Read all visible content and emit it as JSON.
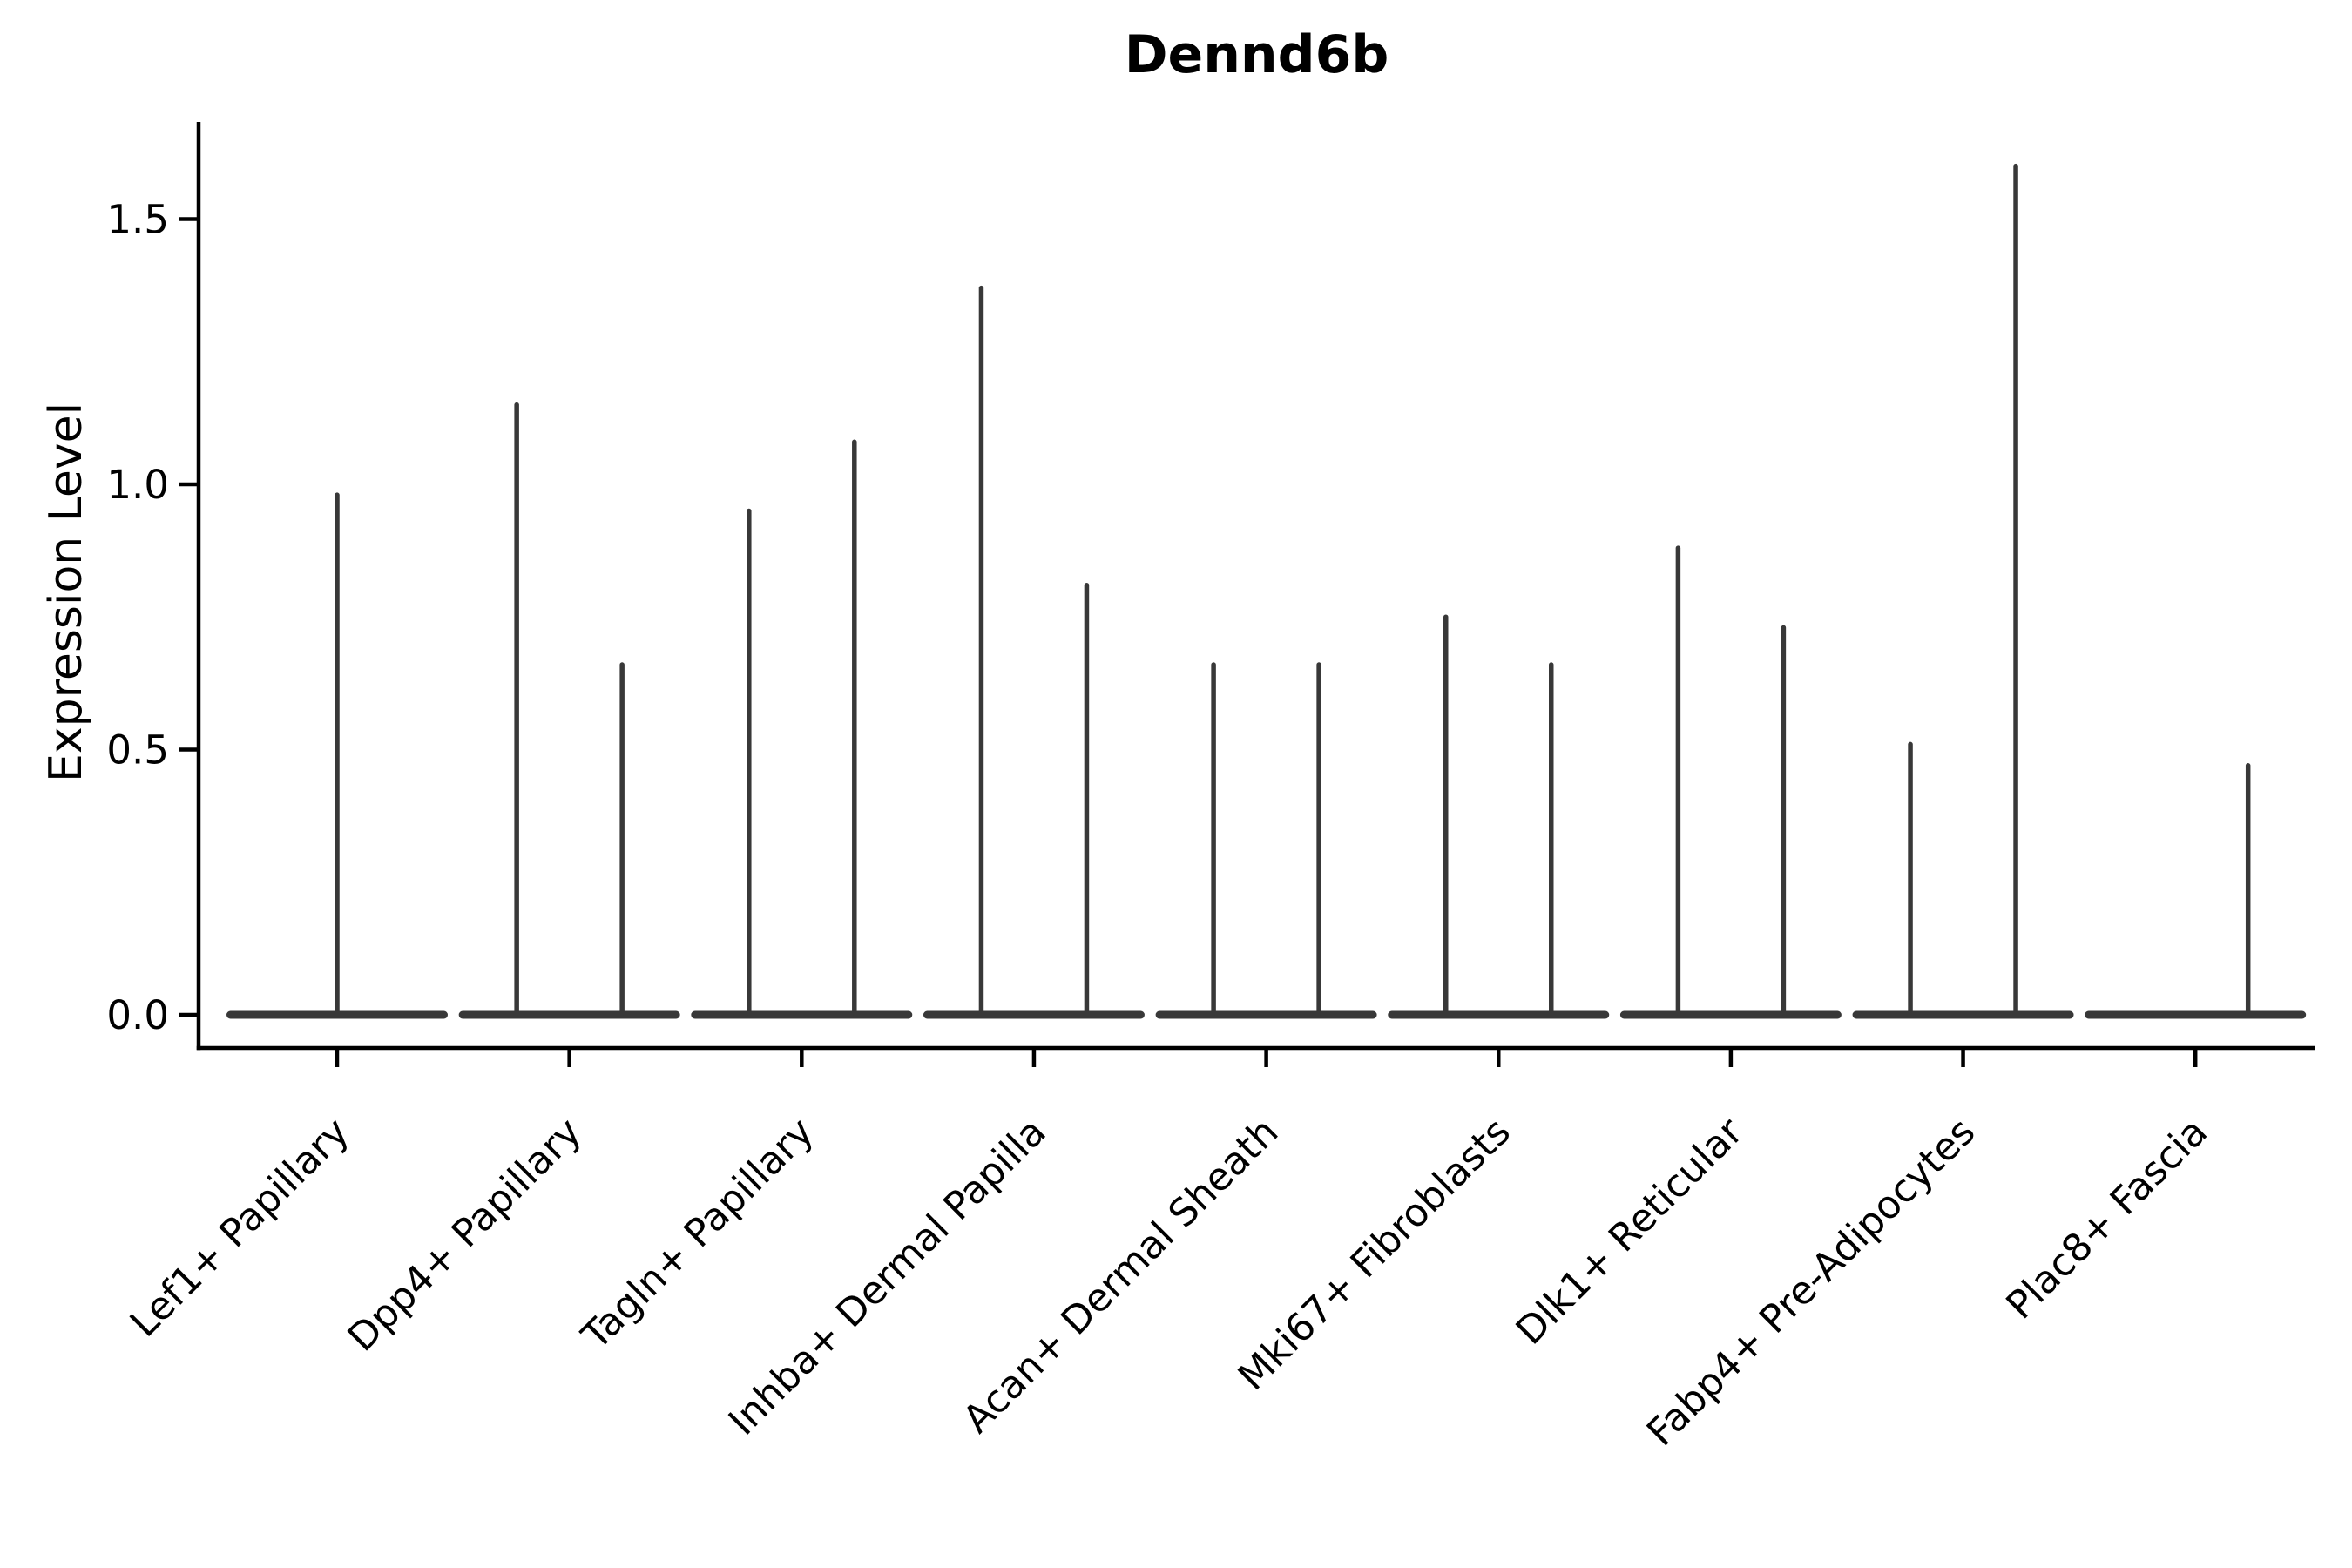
{
  "chart_data": {
    "type": "violin",
    "title": "Dennd6b",
    "ylabel": "Expression Level",
    "xlabel": "",
    "ytick_labels": [
      "0.0",
      "0.5",
      "1.0",
      "1.5"
    ],
    "ylim": [
      -0.06,
      1.68
    ],
    "grid": false,
    "legend": false,
    "x_tick_rotation": 45,
    "baseline_value": 0.0,
    "violin_color": "#383838",
    "axis_color": "#000000",
    "background_color": "#ffffff",
    "categories": [
      {
        "label": "Lef1+ Papillary",
        "spikes": [
          {
            "position": "center",
            "max": 0.98
          }
        ]
      },
      {
        "label": "Dpp4+ Papillary",
        "spikes": [
          {
            "position": "left",
            "max": 1.15
          },
          {
            "position": "right",
            "max": 0.66
          }
        ]
      },
      {
        "label": "Tagln+ Papillary",
        "spikes": [
          {
            "position": "left",
            "max": 0.95
          },
          {
            "position": "right",
            "max": 1.08
          }
        ]
      },
      {
        "label": "Inhba+ Dermal Papilla",
        "spikes": [
          {
            "position": "left",
            "max": 1.37
          },
          {
            "position": "right",
            "max": 0.81
          }
        ]
      },
      {
        "label": "Acan+ Dermal Sheath",
        "spikes": [
          {
            "position": "left",
            "max": 0.66
          },
          {
            "position": "right",
            "max": 0.66
          }
        ]
      },
      {
        "label": "Mki67+ Fibroblasts",
        "spikes": [
          {
            "position": "left",
            "max": 0.75
          },
          {
            "position": "right",
            "max": 0.66
          }
        ]
      },
      {
        "label": "Dlk1+ Reticular",
        "spikes": [
          {
            "position": "left",
            "max": 0.88
          },
          {
            "position": "right",
            "max": 0.73
          }
        ]
      },
      {
        "label": "Fabp4+ Pre-Adipocytes",
        "spikes": [
          {
            "position": "left",
            "max": 0.51
          },
          {
            "position": "right",
            "max": 1.6
          }
        ]
      },
      {
        "label": "Plac8+ Fascia",
        "spikes": [
          {
            "position": "right",
            "max": 0.47
          }
        ]
      }
    ]
  }
}
